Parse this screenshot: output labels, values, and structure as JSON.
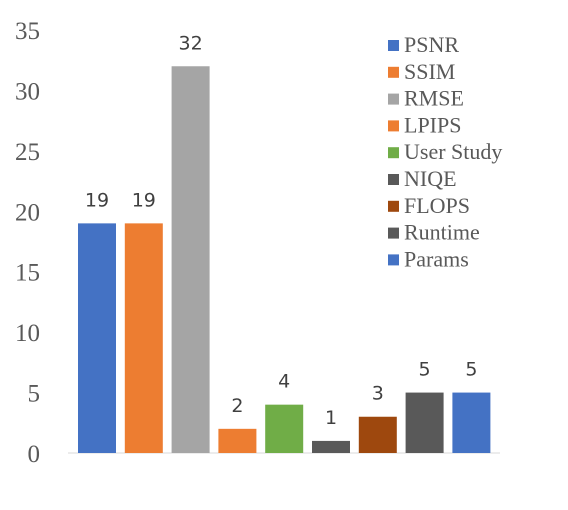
{
  "chart_data": {
    "type": "bar",
    "categories": [
      "PSNR",
      "SSIM",
      "RMSE",
      "LPIPS",
      "User Study",
      "NIQE",
      "FLOPS",
      "Runtime",
      "Params"
    ],
    "values": [
      19,
      19,
      32,
      2,
      4,
      1,
      3,
      5,
      5
    ],
    "data_labels": [
      "19",
      "19",
      "32",
      "2",
      "4",
      "1",
      "3",
      "5",
      "5"
    ],
    "colors": [
      "#4472C4",
      "#ED7D31",
      "#A5A5A5",
      "#ED7D31",
      "#70AD47",
      "#595959",
      "#9E480E",
      "#595959",
      "#4472C4"
    ],
    "ylim": [
      0,
      35
    ],
    "yticks": [
      "0",
      "5",
      "10",
      "15",
      "20",
      "25",
      "30",
      "35"
    ],
    "legend_position": "top-right",
    "grid": false,
    "xlabel": "",
    "ylabel": "",
    "title": ""
  }
}
